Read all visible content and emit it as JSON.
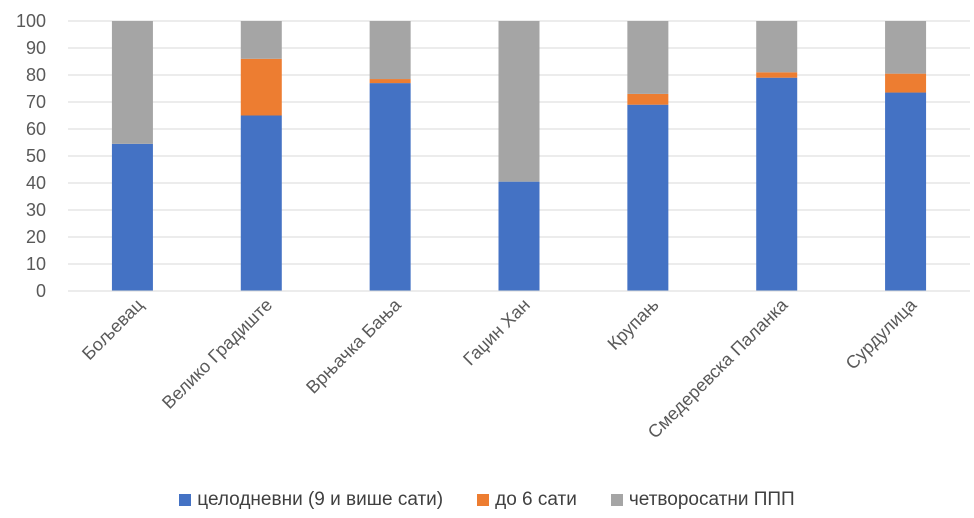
{
  "chart_data": {
    "type": "bar",
    "stacked": true,
    "categories": [
      "Бољевац",
      "Велико Градиште",
      "Врњачка Бања",
      "Гаџин Хан",
      "Крупањ",
      "Смедеревска Паланка",
      "Сурдулица"
    ],
    "series": [
      {
        "name": "целодневни (9 и више сати)",
        "color": "#4472C4",
        "values": [
          54.5,
          65,
          77,
          40.5,
          69,
          79,
          73.5
        ]
      },
      {
        "name": "до 6 сати",
        "color": "#ED7D31",
        "values": [
          0,
          21,
          1.5,
          0,
          4,
          2,
          7
        ]
      },
      {
        "name": "четворосатни ППП",
        "color": "#A5A5A5",
        "values": [
          45.5,
          14,
          21.5,
          59.5,
          27,
          19,
          19.5
        ]
      }
    ],
    "ylim": [
      0,
      100
    ],
    "yticks": [
      "0",
      "10",
      "20",
      "30",
      "40",
      "50",
      "60",
      "70",
      "80",
      "90",
      "100"
    ],
    "grid": "horizontal",
    "legend_position": "bottom",
    "title": "",
    "xlabel": "",
    "ylabel": ""
  }
}
